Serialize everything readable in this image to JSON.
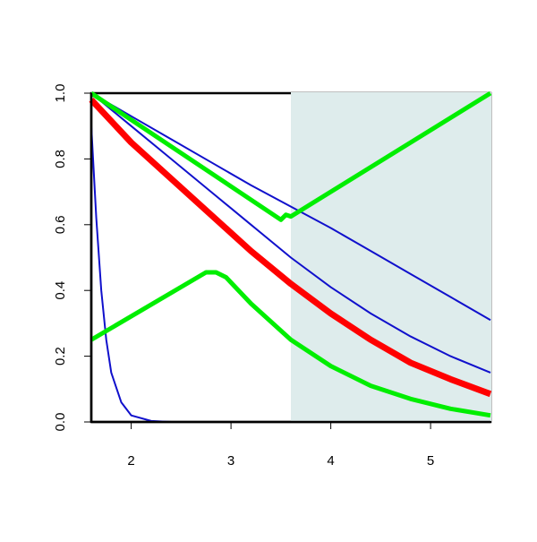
{
  "chart_data": {
    "type": "line",
    "xlim": [
      1.6,
      5.6
    ],
    "ylim": [
      0,
      1
    ],
    "xticks": [
      2,
      3,
      4,
      5
    ],
    "yticks": [
      {
        "value": 0,
        "label": "0.0"
      },
      {
        "value": 0.2,
        "label": "0.2"
      },
      {
        "value": 0.4,
        "label": "0.4"
      },
      {
        "value": 0.6,
        "label": "0.6"
      },
      {
        "value": 0.8,
        "label": "0.8"
      },
      {
        "value": 1,
        "label": "1.0"
      }
    ],
    "highlight_x": [
      3.6,
      5.6
    ],
    "highlight_color": "#deecec",
    "series": [
      {
        "color": "#1010cc",
        "width": 2,
        "x": [
          1.6,
          2.0,
          2.4,
          2.8,
          3.2,
          3.6,
          4.0,
          4.4,
          4.8,
          5.2,
          5.6
        ],
        "values": [
          1.0,
          0.93,
          0.86,
          0.79,
          0.72,
          0.655,
          0.59,
          0.52,
          0.45,
          0.38,
          0.31
        ]
      },
      {
        "color": "#1010cc",
        "width": 2,
        "x": [
          1.6,
          2.0,
          2.4,
          2.8,
          3.2,
          3.6,
          4.0,
          4.4,
          4.8,
          5.2,
          5.6
        ],
        "values": [
          1.0,
          0.9,
          0.8,
          0.7,
          0.6,
          0.5,
          0.41,
          0.33,
          0.26,
          0.2,
          0.15
        ]
      },
      {
        "color": "#1010cc",
        "width": 2,
        "x": [
          1.6,
          1.65,
          1.7,
          1.75,
          1.8,
          1.9,
          2.0,
          2.2,
          2.4,
          5.6
        ],
        "values": [
          0.9,
          0.62,
          0.4,
          0.25,
          0.15,
          0.06,
          0.02,
          0.003,
          0,
          0
        ]
      },
      {
        "color": "#ff0000",
        "width": 7,
        "x": [
          1.6,
          2.0,
          2.4,
          2.8,
          3.2,
          3.6,
          4.0,
          4.4,
          4.8,
          5.2,
          5.6
        ],
        "values": [
          0.98,
          0.85,
          0.74,
          0.63,
          0.52,
          0.42,
          0.33,
          0.25,
          0.18,
          0.13,
          0.085
        ]
      },
      {
        "color": "#00ee00",
        "width": 5,
        "x": [
          1.6,
          3.5,
          3.55,
          3.6,
          5.6
        ],
        "values": [
          1.0,
          0.615,
          0.63,
          0.625,
          1.0
        ]
      },
      {
        "color": "#00ee00",
        "width": 5,
        "x": [
          1.6,
          2.75,
          2.85,
          2.95,
          3.2,
          3.6,
          4.0,
          4.4,
          4.8,
          5.2,
          5.6
        ],
        "values": [
          0.25,
          0.455,
          0.455,
          0.44,
          0.36,
          0.25,
          0.17,
          0.11,
          0.07,
          0.04,
          0.02
        ]
      }
    ]
  }
}
